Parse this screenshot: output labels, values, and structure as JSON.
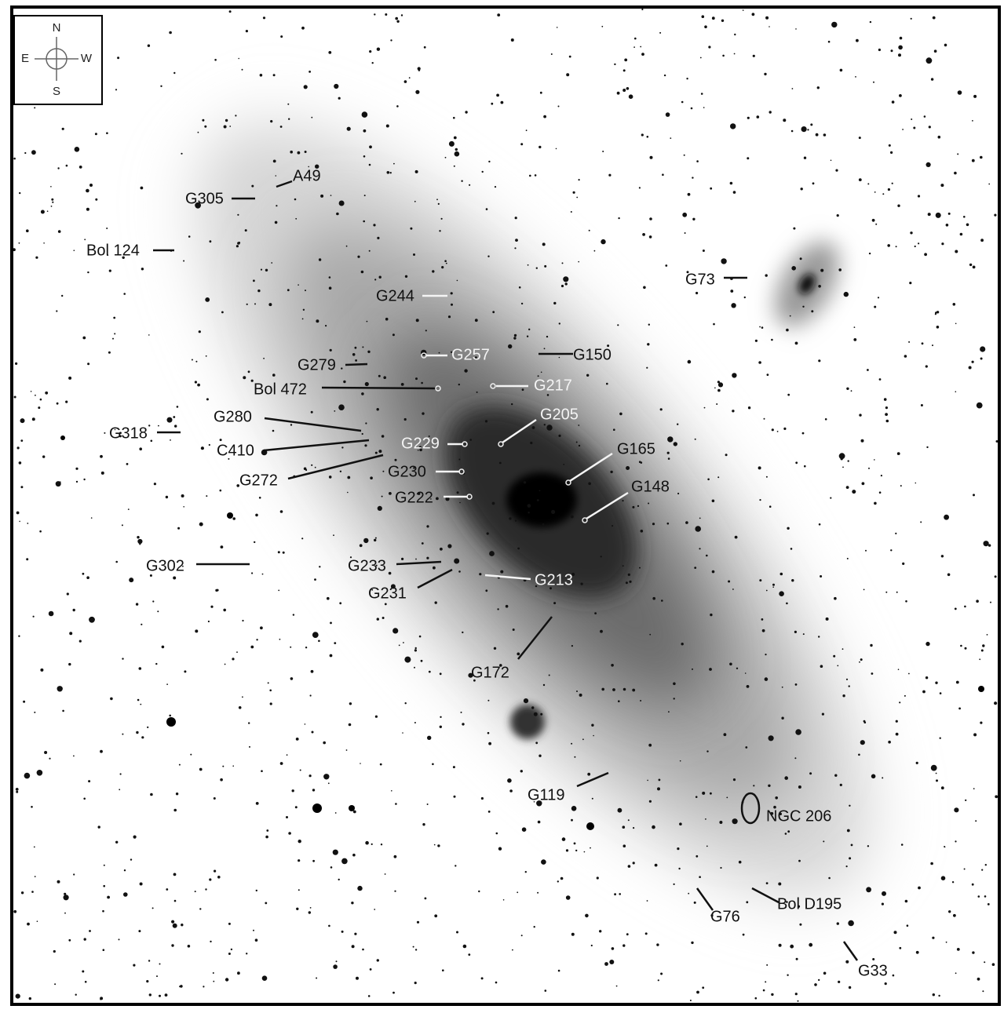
{
  "compass": {
    "n": "N",
    "s": "S",
    "e": "E",
    "w": "W"
  },
  "labels": [
    "A49",
    "G305",
    "Bol 124",
    "G244",
    "G73",
    "G279",
    "G257",
    "G150",
    "Bol 472",
    "G217",
    "G280",
    "G205",
    "G318",
    "G229",
    "C410",
    "G165",
    "G272",
    "G230",
    "G148",
    "G222",
    "G302",
    "G233",
    "G231",
    "G213",
    "G172",
    "G119",
    "NGC 206",
    "Bol D195",
    "G76",
    "G33"
  ]
}
